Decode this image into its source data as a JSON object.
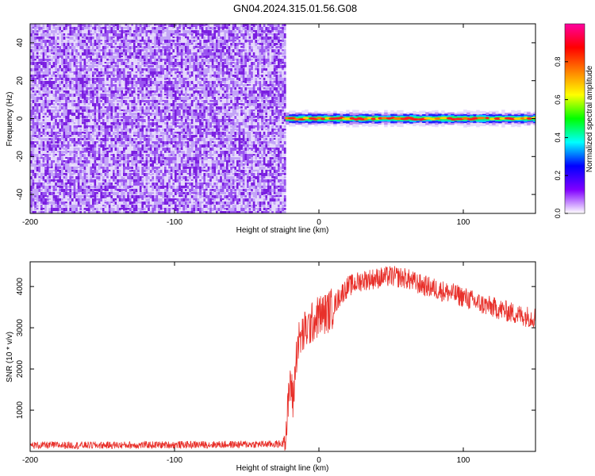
{
  "title": "GN04.2024.315.01.56.G08",
  "colors": {
    "background": "#ffffff",
    "frame": "#000000",
    "snr_line": "#e8302a",
    "noise_palette": [
      "#7a1ee0",
      "#9a55f0",
      "#c3a4f7",
      "#e4d8fb"
    ]
  },
  "chart_data": [
    {
      "type": "heatmap",
      "name": "spectrogram",
      "xlabel": "Height of straight line (km)",
      "ylabel": "Frequency (Hz)",
      "xlim": [
        -200,
        150
      ],
      "ylim": [
        -50,
        50
      ],
      "xticks": [
        -200,
        -100,
        0,
        100
      ],
      "yticks": [
        -40,
        -20,
        0,
        20,
        40
      ],
      "noise_region_x": [
        -200,
        -23
      ],
      "signal_region_x": [
        -23,
        150
      ],
      "signal_frequency_hz": 0,
      "colorbar": {
        "label": "Normalized spectral amplitude",
        "range": [
          0,
          1
        ],
        "ticks": [
          "0.0",
          "0.2",
          "0.4",
          "0.6",
          "0.8"
        ],
        "colormap": [
          "#ffffff",
          "#8000ff",
          "#0000ff",
          "#00ffff",
          "#00ff00",
          "#ffff00",
          "#ff8000",
          "#ff0000",
          "#ff00a0"
        ]
      }
    },
    {
      "type": "line",
      "name": "snr",
      "xlabel": "Height of straight line (km)",
      "ylabel": "SNR (10 * v/v)",
      "xlim": [
        -200,
        150
      ],
      "ylim": [
        0,
        4600
      ],
      "xticks": [
        -200,
        -100,
        0,
        100
      ],
      "yticks": [
        1000,
        2000,
        3000,
        4000
      ],
      "x": [
        -200,
        -150,
        -100,
        -50,
        -25,
        -22,
        -20,
        -18,
        -15,
        -10,
        -5,
        0,
        5,
        10,
        15,
        20,
        30,
        40,
        50,
        60,
        70,
        80,
        90,
        100,
        110,
        120,
        130,
        140,
        150
      ],
      "y": [
        150,
        150,
        160,
        170,
        180,
        700,
        1800,
        1200,
        2600,
        2900,
        3100,
        3300,
        3350,
        3500,
        3800,
        4000,
        4150,
        4200,
        4250,
        4200,
        4050,
        3950,
        3850,
        3750,
        3600,
        3500,
        3400,
        3300,
        3250
      ],
      "noise_amplitude_before_onset": 90,
      "noise_amplitude_after_onset": 260
    }
  ]
}
